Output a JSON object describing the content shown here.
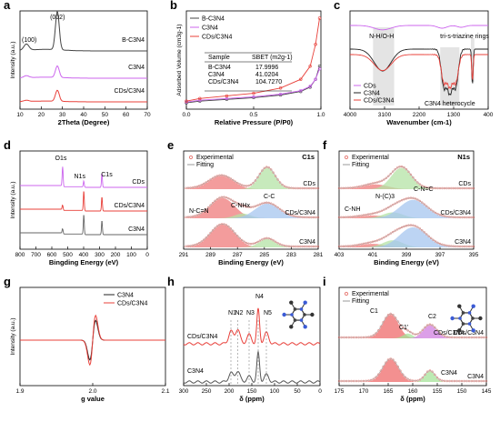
{
  "chart_data": [
    {
      "panel": "a",
      "type": "line",
      "xlabel": "2Theta (Degree)",
      "ylabel": "Intensity (a.u.)",
      "xlim": [
        10,
        70
      ],
      "xticks": [
        "10",
        "20",
        "30",
        "40",
        "50",
        "60",
        "70"
      ],
      "annotations": [
        "(100)",
        "(002)"
      ],
      "series": [
        {
          "name": "B-C3N4",
          "color": "#444444",
          "peaks": [
            [
              13,
              0.16
            ],
            [
              27.6,
              1.0
            ]
          ]
        },
        {
          "name": "C3N4",
          "color": "#cc66ee",
          "peaks": [
            [
              13,
              0.08
            ],
            [
              27.6,
              0.45
            ]
          ]
        },
        {
          "name": "CDs/C3N4",
          "color": "#e8403a",
          "peaks": [
            [
              13,
              0.06
            ],
            [
              27.6,
              0.55
            ]
          ]
        }
      ]
    },
    {
      "panel": "b",
      "type": "line",
      "xlabel": "Relative Pressure (P/P0)",
      "ylabel": "Adsorbed Volume (cm3g-1)",
      "xlim": [
        0,
        1
      ],
      "xticks": [
        "0.0",
        "0.5",
        "1.0"
      ],
      "series": [
        {
          "name": "B-C3N4",
          "color": "#444444",
          "x": [
            0,
            0.1,
            0.3,
            0.5,
            0.7,
            0.85,
            0.92,
            0.96,
            0.99
          ],
          "y": [
            0.03,
            0.05,
            0.07,
            0.09,
            0.12,
            0.16,
            0.21,
            0.3,
            0.45
          ]
        },
        {
          "name": "C3N4",
          "color": "#cc66ee",
          "x": [
            0,
            0.1,
            0.3,
            0.5,
            0.7,
            0.85,
            0.92,
            0.96,
            0.99
          ],
          "y": [
            0.04,
            0.06,
            0.08,
            0.1,
            0.13,
            0.17,
            0.22,
            0.3,
            0.42
          ]
        },
        {
          "name": "CDs/C3N4",
          "color": "#e8403a",
          "x": [
            0,
            0.1,
            0.3,
            0.5,
            0.7,
            0.85,
            0.92,
            0.96,
            0.99
          ],
          "y": [
            0.05,
            0.08,
            0.11,
            0.14,
            0.2,
            0.3,
            0.45,
            0.7,
            1.0
          ]
        }
      ],
      "table": {
        "header": [
          "Sample",
          "SBET (m2g-1)"
        ],
        "rows": [
          [
            "B-C3N4",
            "17.9996"
          ],
          [
            "C3N4",
            "41.0204"
          ],
          [
            "CDs/C3N4",
            "104.7270"
          ]
        ]
      }
    },
    {
      "panel": "c",
      "type": "line",
      "xlabel": "Wavenumber (cm-1)",
      "ylabel": "",
      "xlim": [
        4000,
        400
      ],
      "xticks": [
        "4000",
        "3100",
        "2200",
        "1300",
        "400"
      ],
      "annotations": [
        "N-H/O-H",
        "tri-s-triazine rings",
        "C3N4 heterocycle"
      ],
      "series": [
        {
          "name": "CDs",
          "color": "#cc66ee"
        },
        {
          "name": "C3N4",
          "color": "#222222"
        },
        {
          "name": "CDs/C3N4",
          "color": "#e8403a"
        }
      ]
    },
    {
      "panel": "d",
      "type": "line",
      "xlabel": "Bingding Energy (eV)",
      "ylabel": "Intensity (a.u.)",
      "xlim": [
        800,
        0
      ],
      "xticks": [
        "800",
        "700",
        "600",
        "500",
        "400",
        "300",
        "200",
        "100",
        "0"
      ],
      "annotations": [
        "O1s",
        "N1s",
        "C1s"
      ],
      "series": [
        {
          "name": "CDs",
          "color": "#cc66ee"
        },
        {
          "name": "CDs/C3N4",
          "color": "#e8403a"
        },
        {
          "name": "C3N4",
          "color": "#666666"
        }
      ]
    },
    {
      "panel": "e",
      "type": "line",
      "title": "C1s",
      "xlabel": "Binding Energy (eV)",
      "ylabel": "",
      "xlim": [
        291,
        281
      ],
      "xticks": [
        "291",
        "289",
        "287",
        "285",
        "283",
        "281"
      ],
      "legend": [
        "Experimental",
        "Fitting"
      ],
      "annotations": [
        "N-C=N",
        "C-NHx",
        "C-C"
      ],
      "series": [
        {
          "name": "CDs",
          "peaks": [
            [
              288.2,
              0.55
            ],
            [
              284.8,
              0.9
            ]
          ]
        },
        {
          "name": "CDs/C3N4",
          "peaks": [
            [
              288.1,
              0.85
            ],
            [
              286.6,
              0.2
            ],
            [
              284.8,
              0.62
            ]
          ]
        },
        {
          "name": "C3N4",
          "peaks": [
            [
              288.1,
              0.95
            ],
            [
              284.8,
              0.35
            ]
          ]
        }
      ]
    },
    {
      "panel": "f",
      "type": "line",
      "title": "N1s",
      "xlabel": "Binding Energy (eV)",
      "ylabel": "",
      "xlim": [
        403,
        395
      ],
      "xticks": [
        "403",
        "401",
        "399",
        "397",
        "395"
      ],
      "legend": [
        "Experimental",
        "Fitting"
      ],
      "annotations": [
        "C-NH",
        "N-(C)3",
        "C-N=C"
      ],
      "series": [
        {
          "name": "CDs",
          "peaks": [
            [
              400.8,
              0.2
            ],
            [
              399.3,
              0.9
            ]
          ]
        },
        {
          "name": "CDs/C3N4",
          "peaks": [
            [
              401.0,
              0.12
            ],
            [
              399.8,
              0.25
            ],
            [
              398.6,
              0.78
            ]
          ]
        },
        {
          "name": "C3N4",
          "peaks": [
            [
              401.0,
              0.15
            ],
            [
              399.8,
              0.3
            ],
            [
              398.6,
              0.85
            ]
          ]
        }
      ]
    },
    {
      "panel": "g",
      "type": "line",
      "xlabel": "g value",
      "ylabel": "Intensity (a.u.)",
      "xlim": [
        1.9,
        2.1
      ],
      "xticks": [
        "1.9",
        "2.0",
        "2.1"
      ],
      "series": [
        {
          "name": "C3N4",
          "color": "#222222",
          "amplitude": 0.8
        },
        {
          "name": "CDs/C3N4",
          "color": "#e8403a",
          "amplitude": 1.0
        }
      ]
    },
    {
      "panel": "h",
      "type": "line",
      "xlabel": "δ (ppm)",
      "ylabel": "",
      "xlim": [
        300,
        0
      ],
      "xticks": [
        "300",
        "250",
        "200",
        "150",
        "100",
        "50",
        "0"
      ],
      "annotations": [
        "N1",
        "N2",
        "N3",
        "N4",
        "N5",
        "CDs/C3N4",
        "C3N4"
      ],
      "series": [
        {
          "name": "CDs/C3N4",
          "color": "#e8403a",
          "peaks": [
            [
              196,
              0.35
            ],
            [
              181,
              0.4
            ],
            [
              156,
              0.25
            ],
            [
              136,
              0.95
            ],
            [
              118,
              0.3
            ]
          ]
        },
        {
          "name": "C3N4",
          "color": "#555555",
          "peaks": [
            [
              196,
              0.25
            ],
            [
              181,
              0.3
            ],
            [
              156,
              0.15
            ],
            [
              136,
              0.8
            ],
            [
              118,
              0.2
            ]
          ]
        }
      ]
    },
    {
      "panel": "i",
      "type": "line",
      "xlabel": "δ (ppm)",
      "ylabel": "",
      "xlim": [
        175,
        145
      ],
      "xticks": [
        "175",
        "170",
        "165",
        "160",
        "155",
        "150",
        "145"
      ],
      "legend": [
        "Experimental",
        "Fitting"
      ],
      "annotations": [
        "C1",
        "C1'",
        "C2",
        "CDs/C3N4",
        "C3N4"
      ],
      "series": [
        {
          "name": "CDs/C3N4",
          "peaks": [
            [
              164.5,
              1.0
            ],
            [
              161,
              0.2
            ],
            [
              156.5,
              0.55
            ]
          ]
        },
        {
          "name": "C3N4",
          "peaks": [
            [
              164.5,
              0.95
            ],
            [
              156.5,
              0.45
            ]
          ]
        }
      ]
    }
  ]
}
